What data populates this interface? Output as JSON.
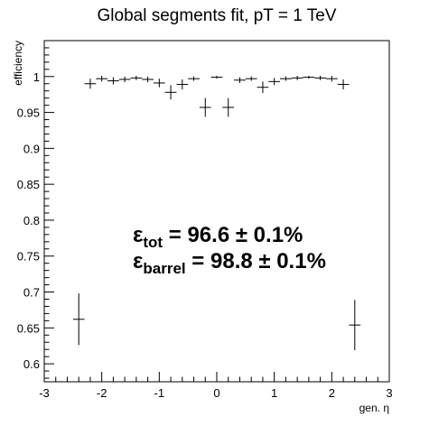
{
  "chart_data": {
    "type": "scatter",
    "title": "Global segments fit, pT = 1 TeV",
    "xlabel": "gen. η",
    "ylabel": "efficiency",
    "xlim": [
      -3,
      3
    ],
    "ylim": [
      0.575,
      1.05
    ],
    "x_ticks": [
      -3,
      -2,
      -1,
      0,
      1,
      2,
      3
    ],
    "x_tick_labels": [
      "-3",
      "-2",
      "-1",
      "0",
      "1",
      "2",
      "3"
    ],
    "y_ticks": [
      0.6,
      0.65,
      0.7,
      0.75,
      0.8,
      0.85,
      0.9,
      0.95,
      1.0
    ],
    "y_tick_labels": [
      "0.6",
      "0.65",
      "0.7",
      "0.75",
      "0.8",
      "0.85",
      "0.9",
      "0.95",
      "1"
    ],
    "grid": false,
    "legend": "none",
    "annotations": [
      {
        "symbol": "ε",
        "subscript": "tot",
        "text": " = 96.6 ± 0.1%"
      },
      {
        "symbol": "ε",
        "subscript": "barrel",
        "text": " = 98.8 ± 0.1%"
      }
    ],
    "series": [
      {
        "points": [
          {
            "x": -2.4,
            "y": 0.662,
            "xerr": 0.1,
            "yerr": 0.036
          },
          {
            "x": -2.2,
            "y": 0.99,
            "xerr": 0.1,
            "yerr": 0.007
          },
          {
            "x": -2.0,
            "y": 0.997,
            "xerr": 0.1,
            "yerr": 0.004
          },
          {
            "x": -1.8,
            "y": 0.994,
            "xerr": 0.1,
            "yerr": 0.005
          },
          {
            "x": -1.6,
            "y": 0.996,
            "xerr": 0.1,
            "yerr": 0.004
          },
          {
            "x": -1.4,
            "y": 0.998,
            "xerr": 0.1,
            "yerr": 0.003
          },
          {
            "x": -1.2,
            "y": 0.996,
            "xerr": 0.1,
            "yerr": 0.004
          },
          {
            "x": -1.0,
            "y": 0.991,
            "xerr": 0.1,
            "yerr": 0.006
          },
          {
            "x": -0.8,
            "y": 0.978,
            "xerr": 0.1,
            "yerr": 0.01
          },
          {
            "x": -0.6,
            "y": 0.989,
            "xerr": 0.1,
            "yerr": 0.007
          },
          {
            "x": -0.4,
            "y": 0.997,
            "xerr": 0.1,
            "yerr": 0.003
          },
          {
            "x": -0.2,
            "y": 0.957,
            "xerr": 0.1,
            "yerr": 0.013
          },
          {
            "x": 0.0,
            "y": 0.999,
            "xerr": 0.1,
            "yerr": 0.002
          },
          {
            "x": 0.2,
            "y": 0.957,
            "xerr": 0.1,
            "yerr": 0.013
          },
          {
            "x": 0.4,
            "y": 0.995,
            "xerr": 0.1,
            "yerr": 0.004
          },
          {
            "x": 0.6,
            "y": 0.997,
            "xerr": 0.1,
            "yerr": 0.003
          },
          {
            "x": 0.8,
            "y": 0.985,
            "xerr": 0.1,
            "yerr": 0.008
          },
          {
            "x": 1.0,
            "y": 0.993,
            "xerr": 0.1,
            "yerr": 0.005
          },
          {
            "x": 1.2,
            "y": 0.997,
            "xerr": 0.1,
            "yerr": 0.003
          },
          {
            "x": 1.4,
            "y": 0.998,
            "xerr": 0.1,
            "yerr": 0.003
          },
          {
            "x": 1.6,
            "y": 0.999,
            "xerr": 0.1,
            "yerr": 0.002
          },
          {
            "x": 1.8,
            "y": 0.998,
            "xerr": 0.1,
            "yerr": 0.003
          },
          {
            "x": 2.0,
            "y": 0.997,
            "xerr": 0.1,
            "yerr": 0.004
          },
          {
            "x": 2.2,
            "y": 0.989,
            "xerr": 0.1,
            "yerr": 0.007
          },
          {
            "x": 2.4,
            "y": 0.654,
            "xerr": 0.1,
            "yerr": 0.035
          }
        ]
      }
    ]
  }
}
